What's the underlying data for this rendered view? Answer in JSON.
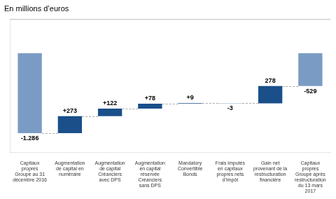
{
  "chart_data": {
    "type": "waterfall",
    "title": "En millions d’euros",
    "categories": [
      "Capitaux\npropres\nGroupe au 31\ndécembre 2016",
      "Augmentation\nde capital en\nnuméraire",
      "Augmentation\nde capital\nCréanciers\navec DPS",
      "Augmentation\nen capital\nréservée\nCréanciers\nsans DPS",
      "Mandatory\nConvertible\nBonds",
      "Frais imputés\nen capitaux\npropres nets\nd’impôt",
      "Gain net\nprovenant de la\nrestructuration\nfinancière",
      "Capitaux\npropres\nGroupe après\nrestructuration\ndu 13 mars\n2017"
    ],
    "values": [
      -1286,
      273,
      122,
      78,
      9,
      -3,
      278,
      -529
    ],
    "value_labels": [
      "-1.286",
      "+273",
      "+122",
      "+78",
      "+9",
      "-3",
      "278",
      "-529"
    ],
    "totals": [
      true,
      false,
      false,
      false,
      false,
      false,
      false,
      true
    ],
    "colors": [
      "#7a9cc4",
      "#1a4f8a",
      "#1a4f8a",
      "#1a4f8a",
      "#1a4f8a",
      "#1a4f8a",
      "#1a4f8a",
      "#7a9cc4"
    ],
    "ylim": [
      -1600,
      550
    ],
    "grid": false,
    "data_labels": true,
    "tick_labels": "x"
  }
}
